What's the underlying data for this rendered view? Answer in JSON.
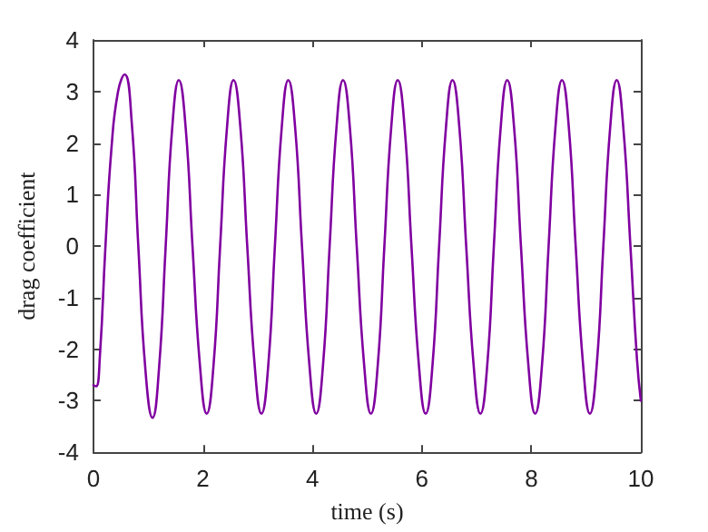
{
  "chart_data": {
    "type": "line",
    "xlabel": "time (s)",
    "ylabel": "drag coefficient",
    "xlim": [
      0,
      10
    ],
    "xticks": [
      0,
      2,
      4,
      6,
      8,
      10
    ],
    "ylim": [
      -4,
      4
    ],
    "yticks": [
      -4,
      -3,
      -2,
      -1,
      0,
      1,
      2,
      3,
      4
    ],
    "grid": false,
    "marker": "none",
    "line_style": "solid",
    "series": [
      {
        "color": "#8000a0",
        "x": [
          0,
          0.05,
          0.12,
          0.22,
          0.33,
          0.45,
          0.57,
          0.7,
          0.82,
          0.95,
          1.08,
          1.2,
          1.32,
          1.44,
          1.56,
          1.685,
          1.81,
          1.945,
          2.07,
          2.195,
          2.315,
          2.44,
          2.56,
          2.685,
          2.81,
          2.945,
          3.07,
          3.195,
          3.315,
          3.44,
          3.56,
          3.685,
          3.81,
          3.945,
          4.07,
          4.195,
          4.315,
          4.44,
          4.56,
          4.685,
          4.81,
          4.945,
          5.07,
          5.195,
          5.315,
          5.44,
          5.56,
          5.685,
          5.81,
          5.945,
          6.07,
          6.195,
          6.315,
          6.44,
          6.56,
          6.685,
          6.81,
          6.945,
          7.07,
          7.195,
          7.315,
          7.44,
          7.56,
          7.685,
          7.81,
          7.945,
          8.07,
          8.195,
          8.315,
          8.44,
          8.56,
          8.685,
          8.81,
          8.945,
          9.07,
          9.195,
          9.315,
          9.44,
          9.56,
          9.68,
          9.81,
          9.93,
          10
        ],
        "values": [
          -2.7,
          -2.72,
          -2.1,
          0,
          1.9,
          3.0,
          3.33,
          2.4,
          0,
          -2.4,
          -3.33,
          -2.35,
          0,
          2.3,
          3.22,
          2.3,
          0,
          -2.3,
          -3.25,
          -2.3,
          0,
          2.3,
          3.22,
          2.3,
          0,
          -2.3,
          -3.25,
          -2.3,
          0,
          2.3,
          3.22,
          2.3,
          0,
          -2.3,
          -3.25,
          -2.3,
          0,
          2.3,
          3.22,
          2.3,
          0,
          -2.3,
          -3.25,
          -2.3,
          0,
          2.3,
          3.22,
          2.3,
          0,
          -2.3,
          -3.25,
          -2.3,
          0,
          2.3,
          3.22,
          2.3,
          0,
          -2.3,
          -3.25,
          -2.3,
          0,
          2.3,
          3.22,
          2.3,
          0,
          -2.3,
          -3.25,
          -2.3,
          0,
          2.3,
          3.22,
          2.3,
          0,
          -2.3,
          -3.25,
          -2.3,
          0,
          2.3,
          3.22,
          2.3,
          0,
          -2.2,
          -3.0
        ]
      }
    ]
  }
}
